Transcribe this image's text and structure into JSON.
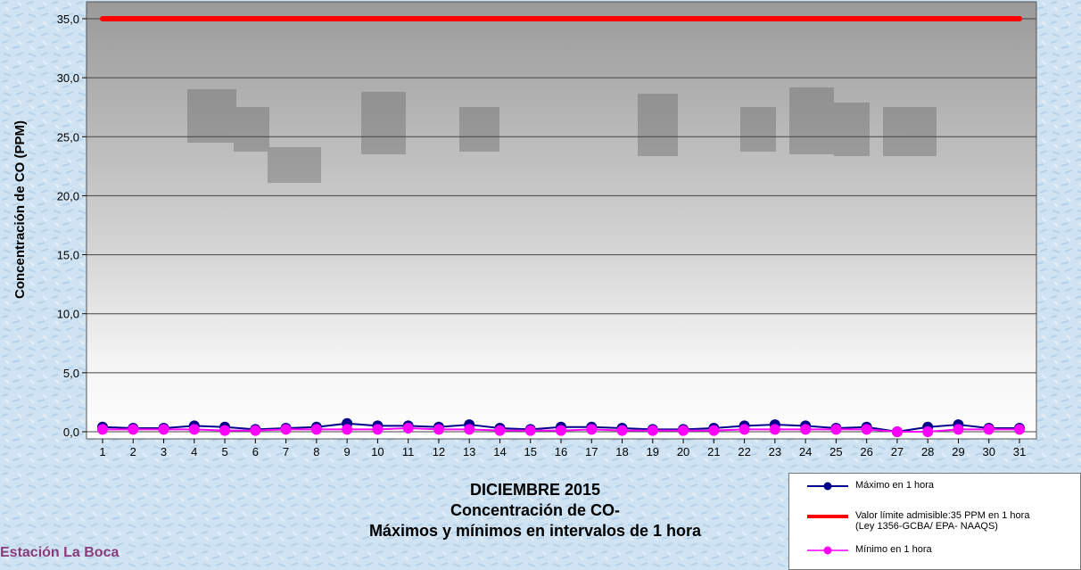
{
  "chart_data": {
    "type": "line",
    "ylabel": "Concentración de CO (PPM)",
    "ylim": [
      0,
      35
    ],
    "yticks": [
      "0,0",
      "5,0",
      "10,0",
      "15,0",
      "20,0",
      "25,0",
      "30,0",
      "35,0"
    ],
    "ytick_values": [
      0,
      5,
      10,
      15,
      20,
      25,
      30,
      35
    ],
    "categories": [
      "1",
      "2",
      "3",
      "4",
      "5",
      "6",
      "7",
      "8",
      "9",
      "10",
      "11",
      "12",
      "13",
      "14",
      "15",
      "16",
      "17",
      "18",
      "19",
      "20",
      "21",
      "22",
      "23",
      "24",
      "25",
      "26",
      "27",
      "28",
      "29",
      "30",
      "31"
    ],
    "grid": true,
    "legend_position": "bottom-right",
    "series": [
      {
        "name": "Máximo en 1 hora",
        "color": "#00008b",
        "marker": "circle",
        "values": [
          0.4,
          0.3,
          0.3,
          0.5,
          0.4,
          0.2,
          0.3,
          0.4,
          0.7,
          0.5,
          0.5,
          0.4,
          0.6,
          0.3,
          0.2,
          0.4,
          0.4,
          0.3,
          0.2,
          0.2,
          0.3,
          0.5,
          0.6,
          0.5,
          0.3,
          0.4,
          0.0,
          0.4,
          0.6,
          0.3,
          0.3
        ]
      },
      {
        "name": "Valor límite admisible:35 PPM en 1 hora (Ley 1356-GCBA/ EPA- NAAQS)",
        "color": "#ff0000",
        "marker": "none",
        "values": [
          35,
          35,
          35,
          35,
          35,
          35,
          35,
          35,
          35,
          35,
          35,
          35,
          35,
          35,
          35,
          35,
          35,
          35,
          35,
          35,
          35,
          35,
          35,
          35,
          35,
          35,
          35,
          35,
          35,
          35,
          35
        ]
      },
      {
        "name": "Mínimo en 1 hora",
        "color": "#ff00ff",
        "marker": "circle",
        "values": [
          0.2,
          0.2,
          0.2,
          0.2,
          0.1,
          0.1,
          0.2,
          0.2,
          0.2,
          0.2,
          0.3,
          0.2,
          0.2,
          0.1,
          0.1,
          0.1,
          0.2,
          0.1,
          0.1,
          0.1,
          0.1,
          0.2,
          0.2,
          0.2,
          0.2,
          0.2,
          0.0,
          0.0,
          0.2,
          0.2,
          0.2
        ]
      }
    ]
  },
  "caption": {
    "line1": "DICIEMBRE 2015",
    "line2": "Concentración de CO-",
    "line3": "Máximos y mínimos en intervalos de 1 hora"
  },
  "station": "Estación La Boca",
  "legend": {
    "max_label": "Máximo en 1 hora",
    "limit_label_1": "Valor límite admisible:35 PPM en 1 hora",
    "limit_label_2": "(Ley 1356-GCBA/ EPA- NAAQS)",
    "min_label": "Mínimo en 1 hora"
  },
  "colors": {
    "max": "#00008b",
    "limit": "#ff0000",
    "min": "#ff00ff"
  }
}
